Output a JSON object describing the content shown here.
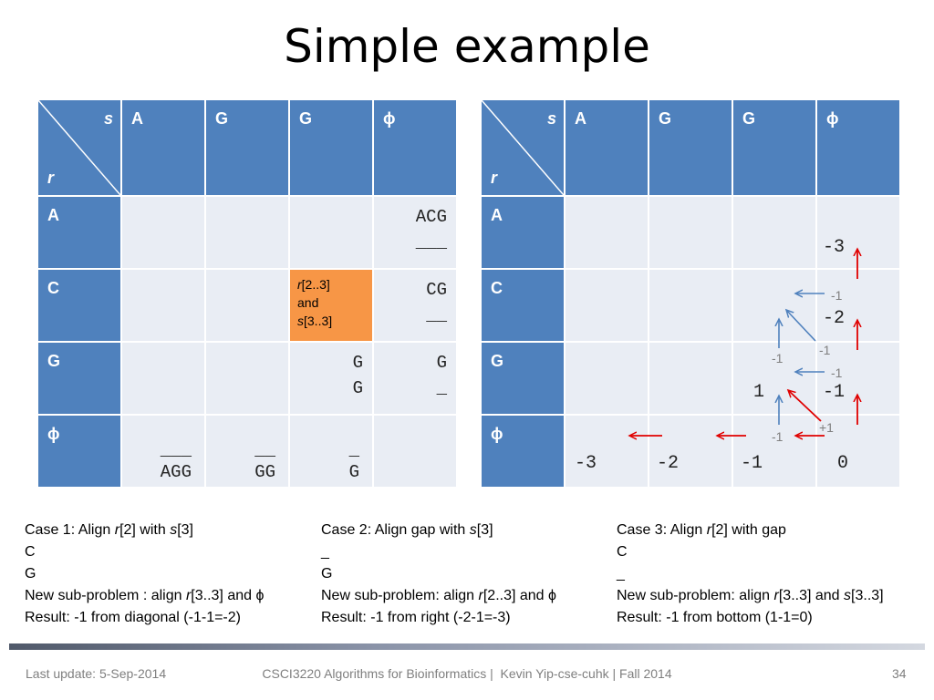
{
  "slide": {
    "title": "Simple example",
    "footer": {
      "left": "Last update: 5-Sep-2014",
      "center": "CSCI3220 Algorithms for Bioinformatics |  Kevin Yip-cse-cuhk | Fall 2014",
      "page": "34"
    }
  },
  "table_left": {
    "corner_s": "s",
    "corner_r": "r",
    "col_headers": [
      "A",
      "G",
      "G",
      "ϕ"
    ],
    "row_headers": [
      "A",
      "C",
      "G",
      "ϕ"
    ],
    "cells": {
      "a_phi": [
        "ACG",
        "___"
      ],
      "c_phi": [
        "CG",
        "__"
      ],
      "g_g2": [
        "G",
        "G"
      ],
      "g_phi": [
        "G",
        "_"
      ],
      "phi_a": [
        "___",
        "AGG"
      ],
      "phi_g1": [
        "__",
        "GG"
      ],
      "phi_g2": [
        "_",
        "G"
      ],
      "highlight": {
        "l1_italic": "r",
        "l1_rest": "[2..3]",
        "l2": "and",
        "l3_italic": "s",
        "l3_rest": "[3..3]"
      }
    }
  },
  "table_right": {
    "corner_s": "s",
    "corner_r": "r",
    "col_headers": [
      "A",
      "G",
      "G",
      "ϕ"
    ],
    "row_headers": [
      "A",
      "C",
      "G",
      "ϕ"
    ],
    "values": {
      "a_phi": "-3",
      "c_phi": "-2",
      "g_g2": "1",
      "g_phi": "-1",
      "phi_a": "-3",
      "phi_g1": "-2",
      "phi_g2": "-1",
      "phi_phi": "0"
    },
    "annotations": {
      "c_left": "-1",
      "g_up": "-1",
      "g_diag": "-1",
      "g_left": "-1",
      "phi_up": "-1",
      "phi_diag": "+1"
    },
    "colors": {
      "red_arrow": "#e00000",
      "blue_arrow": "#4f81bd"
    }
  },
  "cases": [
    {
      "l1_pre": "Case 1: Align ",
      "l1_i1": "r",
      "l1_m1": "[2] with ",
      "l1_i2": "s",
      "l1_m2": "[3]",
      "l2": "C",
      "l3": "G",
      "l4_pre": "New sub-problem : align ",
      "l4_i1": "r",
      "l4_m1": "[3..3] and ϕ",
      "l5": "Result: -1 from diagonal (-1-1=-2)"
    },
    {
      "l1_pre": "Case 2: Align gap with ",
      "l1_i2": "s",
      "l1_m2": "[3]",
      "l2": "_",
      "l3": "G",
      "l4_pre": "New sub-problem: align ",
      "l4_i1": "r",
      "l4_m1": "[2..3] and ϕ",
      "l5": "Result: -1 from right (-2-1=-3)"
    },
    {
      "l1_pre": "Case 3: Align ",
      "l1_i1": "r",
      "l1_m1": "[2] with gap",
      "l2": "C",
      "l3": "_",
      "l4_pre": "New sub-problem: align ",
      "l4_i1": "r",
      "l4_m1": "[3..3] and ",
      "l4_i2": "s",
      "l4_m2": "[3..3]",
      "l5": "Result: -1 from bottom (1-1=0)"
    }
  ]
}
